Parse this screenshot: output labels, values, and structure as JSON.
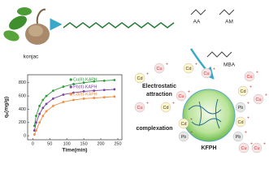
{
  "chart_data": {
    "type": "line",
    "x_label": "Time(min)",
    "y_label": "qₑ(mg/g)",
    "x": [
      5,
      10,
      20,
      30,
      40,
      60,
      90,
      120,
      150,
      180,
      210,
      240
    ],
    "series": [
      {
        "name": "Cu(II)-KAPH",
        "color": "#2e9a3a",
        "values": [
          150,
          300,
          450,
          540,
          600,
          680,
          740,
          780,
          800,
          820,
          830,
          840
        ]
      },
      {
        "name": "Pb(II)-KAPH",
        "color": "#7b3fa0",
        "values": [
          80,
          200,
          330,
          420,
          480,
          560,
          620,
          650,
          670,
          680,
          690,
          700
        ]
      },
      {
        "name": "Cd(II)-KAPH",
        "color": "#f08a3c",
        "values": [
          20,
          80,
          200,
          300,
          370,
          450,
          510,
          540,
          560,
          570,
          580,
          590
        ]
      }
    ],
    "xlim": [
      -15,
      262
    ],
    "ylim": [
      -60,
      920
    ],
    "xticks": [
      0,
      50,
      100,
      150,
      200,
      250
    ],
    "yticks": [
      0,
      200,
      400,
      600,
      800
    ]
  },
  "diagram": {
    "source": "konjac",
    "monomers": [
      "AA",
      "AM",
      "MBA"
    ],
    "electrostatic": [
      "Electrostatic",
      "attraction"
    ],
    "complexation": "complexation",
    "product": "KFPH",
    "ions": [
      "Cd",
      "Cu",
      "Cd",
      "Cu",
      "Cu",
      "Cd",
      "Cu",
      "Cu",
      "Cd",
      "Pb",
      "Cd",
      "Cu",
      "Pb",
      "Cd",
      "Pb",
      "Cu",
      "Cu"
    ]
  }
}
